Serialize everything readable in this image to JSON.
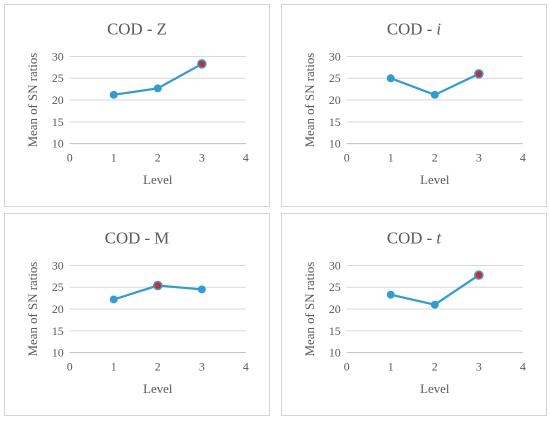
{
  "chart_data": [
    {
      "type": "line",
      "title_prefix": "COD - ",
      "title_var": "Z",
      "title_var_italic": false,
      "xlabel": "Level",
      "ylabel": "Mean of SN ratios",
      "xlim": [
        0,
        4
      ],
      "ylim": [
        10,
        30
      ],
      "xticks": [
        0,
        1,
        2,
        3,
        4
      ],
      "yticks": [
        10,
        15,
        20,
        25,
        30
      ],
      "grid": true,
      "x": [
        1,
        2,
        3
      ],
      "y": [
        21.2,
        22.7,
        28.3
      ],
      "highlight_index": 2,
      "line_color": "#2e9cd6",
      "point_color": "#2e9cd6",
      "highlight_color": "#d62828"
    },
    {
      "type": "line",
      "title_prefix": "COD - ",
      "title_var": "i",
      "title_var_italic": true,
      "xlabel": "Level",
      "ylabel": "Mean of SN ratios",
      "xlim": [
        0,
        4
      ],
      "ylim": [
        10,
        30
      ],
      "xticks": [
        0,
        1,
        2,
        3,
        4
      ],
      "yticks": [
        10,
        15,
        20,
        25,
        30
      ],
      "grid": true,
      "x": [
        1,
        2,
        3
      ],
      "y": [
        25.0,
        21.2,
        26.0
      ],
      "highlight_index": 2,
      "line_color": "#2e9cd6",
      "point_color": "#2e9cd6",
      "highlight_color": "#d62828"
    },
    {
      "type": "line",
      "title_prefix": "COD - ",
      "title_var": "M",
      "title_var_italic": false,
      "xlabel": "Level",
      "ylabel": "Mean of SN ratios",
      "xlim": [
        0,
        4
      ],
      "ylim": [
        10,
        30
      ],
      "xticks": [
        0,
        1,
        2,
        3,
        4
      ],
      "yticks": [
        10,
        15,
        20,
        25,
        30
      ],
      "grid": true,
      "x": [
        1,
        2,
        3
      ],
      "y": [
        22.2,
        25.4,
        24.5
      ],
      "highlight_index": 1,
      "line_color": "#2e9cd6",
      "point_color": "#2e9cd6",
      "highlight_color": "#d62828"
    },
    {
      "type": "line",
      "title_prefix": "COD - ",
      "title_var": "t",
      "title_var_italic": true,
      "xlabel": "Level",
      "ylabel": "Mean of SN ratios",
      "xlim": [
        0,
        4
      ],
      "ylim": [
        10,
        30
      ],
      "xticks": [
        0,
        1,
        2,
        3,
        4
      ],
      "yticks": [
        10,
        15,
        20,
        25,
        30
      ],
      "grid": true,
      "x": [
        1,
        2,
        3
      ],
      "y": [
        23.3,
        21.0,
        27.8
      ],
      "highlight_index": 2,
      "line_color": "#2e9cd6",
      "point_color": "#2e9cd6",
      "highlight_color": "#d62828"
    }
  ]
}
